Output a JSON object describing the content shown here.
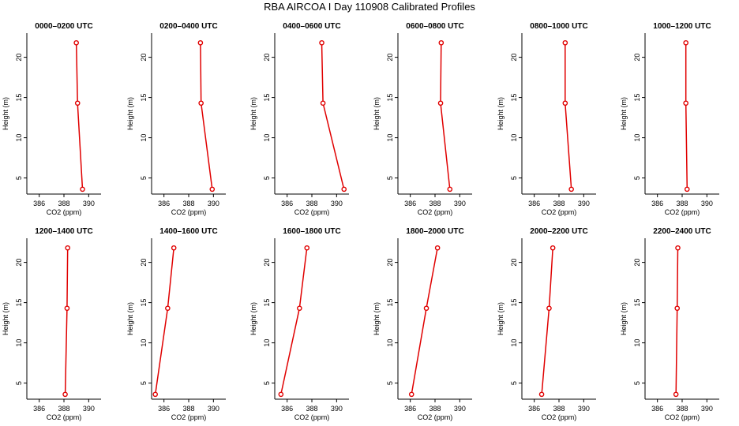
{
  "figure_title": "RBA AIRCOA I  Day 110908  Calibrated Profiles",
  "colors": {
    "profile_line": "#e00000",
    "axis": "#000000"
  },
  "chart_data": [
    {
      "type": "line",
      "title": "0000–0200 UTC",
      "xlabel": "CO2 (ppm)",
      "ylabel": "Height (m)",
      "xlim": [
        385,
        391
      ],
      "ylim": [
        3,
        23
      ],
      "xticks": [
        "386",
        "388",
        "390"
      ],
      "yticks": [
        "5",
        "10",
        "15",
        "20"
      ],
      "series": [
        {
          "x": [
            389.5,
            389.1,
            389.0
          ],
          "y": [
            3.6,
            14.3,
            21.8
          ]
        }
      ]
    },
    {
      "type": "line",
      "title": "0200–0400 UTC",
      "xlabel": "CO2 (ppm)",
      "ylabel": "Height (m)",
      "xlim": [
        385,
        391
      ],
      "ylim": [
        3,
        23
      ],
      "xticks": [
        "386",
        "388",
        "390"
      ],
      "yticks": [
        "5",
        "10",
        "15",
        "20"
      ],
      "series": [
        {
          "x": [
            389.9,
            389.0,
            388.95
          ],
          "y": [
            3.6,
            14.3,
            21.8
          ]
        }
      ]
    },
    {
      "type": "line",
      "title": "0400–0600 UTC",
      "xlabel": "CO2 (ppm)",
      "ylabel": "Height (m)",
      "xlim": [
        385,
        391
      ],
      "ylim": [
        3,
        23
      ],
      "xticks": [
        "386",
        "388",
        "390"
      ],
      "yticks": [
        "5",
        "10",
        "15",
        "20"
      ],
      "series": [
        {
          "x": [
            390.6,
            388.9,
            388.8
          ],
          "y": [
            3.6,
            14.3,
            21.8
          ]
        }
      ]
    },
    {
      "type": "line",
      "title": "0600–0800 UTC",
      "xlabel": "CO2 (ppm)",
      "ylabel": "Height (m)",
      "xlim": [
        385,
        391
      ],
      "ylim": [
        3,
        23
      ],
      "xticks": [
        "386",
        "388",
        "390"
      ],
      "yticks": [
        "5",
        "10",
        "15",
        "20"
      ],
      "series": [
        {
          "x": [
            389.2,
            388.45,
            388.5
          ],
          "y": [
            3.6,
            14.3,
            21.8
          ]
        }
      ]
    },
    {
      "type": "line",
      "title": "0800–1000 UTC",
      "xlabel": "CO2 (ppm)",
      "ylabel": "Height (m)",
      "xlim": [
        385,
        391
      ],
      "ylim": [
        3,
        23
      ],
      "xticks": [
        "386",
        "388",
        "390"
      ],
      "yticks": [
        "5",
        "10",
        "15",
        "20"
      ],
      "series": [
        {
          "x": [
            389.0,
            388.5,
            388.5
          ],
          "y": [
            3.6,
            14.3,
            21.8
          ]
        }
      ]
    },
    {
      "type": "line",
      "title": "1000–1200 UTC",
      "xlabel": "CO2 (ppm)",
      "ylabel": "Height (m)",
      "xlim": [
        385,
        391
      ],
      "ylim": [
        3,
        23
      ],
      "xticks": [
        "386",
        "388",
        "390"
      ],
      "yticks": [
        "5",
        "10",
        "15",
        "20"
      ],
      "series": [
        {
          "x": [
            388.4,
            388.3,
            388.3
          ],
          "y": [
            3.6,
            14.3,
            21.8
          ]
        }
      ]
    },
    {
      "type": "line",
      "title": "1200–1400 UTC",
      "xlabel": "CO2 (ppm)",
      "ylabel": "Height (m)",
      "xlim": [
        385,
        391
      ],
      "ylim": [
        3,
        23
      ],
      "xticks": [
        "386",
        "388",
        "390"
      ],
      "yticks": [
        "5",
        "10",
        "15",
        "20"
      ],
      "series": [
        {
          "x": [
            388.1,
            388.25,
            388.3
          ],
          "y": [
            3.6,
            14.3,
            21.8
          ]
        }
      ]
    },
    {
      "type": "line",
      "title": "1400–1600 UTC",
      "xlabel": "CO2 (ppm)",
      "ylabel": "Height (m)",
      "xlim": [
        385,
        391
      ],
      "ylim": [
        3,
        23
      ],
      "xticks": [
        "386",
        "388",
        "390"
      ],
      "yticks": [
        "5",
        "10",
        "15",
        "20"
      ],
      "series": [
        {
          "x": [
            385.3,
            386.3,
            386.8
          ],
          "y": [
            3.6,
            14.3,
            21.8
          ]
        }
      ]
    },
    {
      "type": "line",
      "title": "1600–1800 UTC",
      "xlabel": "CO2 (ppm)",
      "ylabel": "Height (m)",
      "xlim": [
        385,
        391
      ],
      "ylim": [
        3,
        23
      ],
      "xticks": [
        "386",
        "388",
        "390"
      ],
      "yticks": [
        "5",
        "10",
        "15",
        "20"
      ],
      "series": [
        {
          "x": [
            385.5,
            387.0,
            387.6
          ],
          "y": [
            3.6,
            14.3,
            21.8
          ]
        }
      ]
    },
    {
      "type": "line",
      "title": "1800–2000 UTC",
      "xlabel": "CO2 (ppm)",
      "ylabel": "Height (m)",
      "xlim": [
        385,
        391
      ],
      "ylim": [
        3,
        23
      ],
      "xticks": [
        "386",
        "388",
        "390"
      ],
      "yticks": [
        "5",
        "10",
        "15",
        "20"
      ],
      "series": [
        {
          "x": [
            386.1,
            387.3,
            388.2
          ],
          "y": [
            3.6,
            14.3,
            21.8
          ]
        }
      ]
    },
    {
      "type": "line",
      "title": "2000–2200 UTC",
      "xlabel": "CO2 (ppm)",
      "ylabel": "Height (m)",
      "xlim": [
        385,
        391
      ],
      "ylim": [
        3,
        23
      ],
      "xticks": [
        "386",
        "388",
        "390"
      ],
      "yticks": [
        "5",
        "10",
        "15",
        "20"
      ],
      "series": [
        {
          "x": [
            386.6,
            387.2,
            387.5
          ],
          "y": [
            3.6,
            14.3,
            21.8
          ]
        }
      ]
    },
    {
      "type": "line",
      "title": "2200–2400 UTC",
      "xlabel": "CO2 (ppm)",
      "ylabel": "Height (m)",
      "xlim": [
        385,
        391
      ],
      "ylim": [
        3,
        23
      ],
      "xticks": [
        "386",
        "388",
        "390"
      ],
      "yticks": [
        "5",
        "10",
        "15",
        "20"
      ],
      "series": [
        {
          "x": [
            387.5,
            387.6,
            387.65
          ],
          "y": [
            3.6,
            14.3,
            21.8
          ]
        }
      ]
    }
  ]
}
